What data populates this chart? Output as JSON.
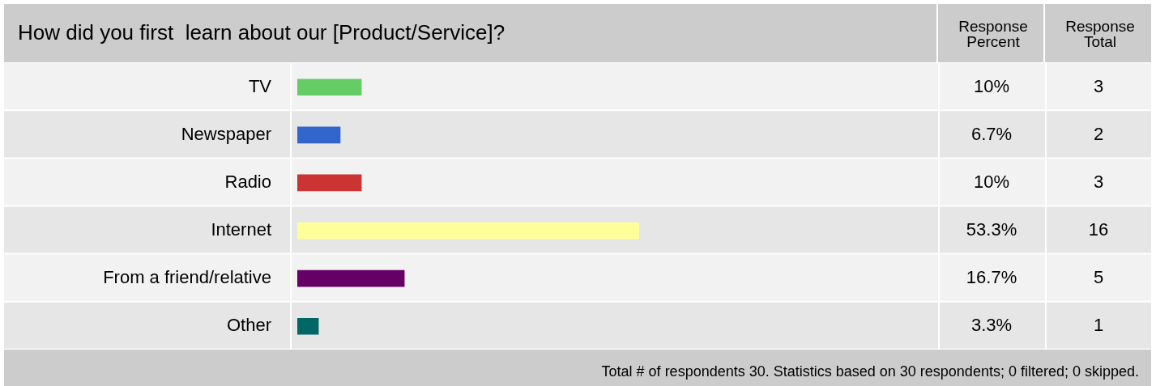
{
  "chart_data": {
    "type": "bar",
    "orientation": "horizontal",
    "title": "How did you first  learn about our [Product/Service]?",
    "categories": [
      "TV",
      "Newspaper",
      "Radio",
      "Internet",
      "From a friend/relative",
      "Other"
    ],
    "values": [
      10,
      6.7,
      10,
      53.3,
      16.7,
      3.3
    ],
    "colors": [
      "#66cc66",
      "#3366cc",
      "#cc3333",
      "#ffff99",
      "#660066",
      "#006666"
    ],
    "value_labels": [
      "10%",
      "6.7%",
      "10%",
      "53.3%",
      "16.7%",
      "3.3%"
    ],
    "xlim": [
      0,
      100
    ],
    "tick_labels": "y",
    "annotations": [
      "Response Percent",
      "Response Total",
      "Total # of respondents 30. Statistics based on 30 respondents; 0 filtered; 0 skipped.",
      "3",
      "2",
      "3",
      "16",
      "5",
      "1"
    ]
  }
}
